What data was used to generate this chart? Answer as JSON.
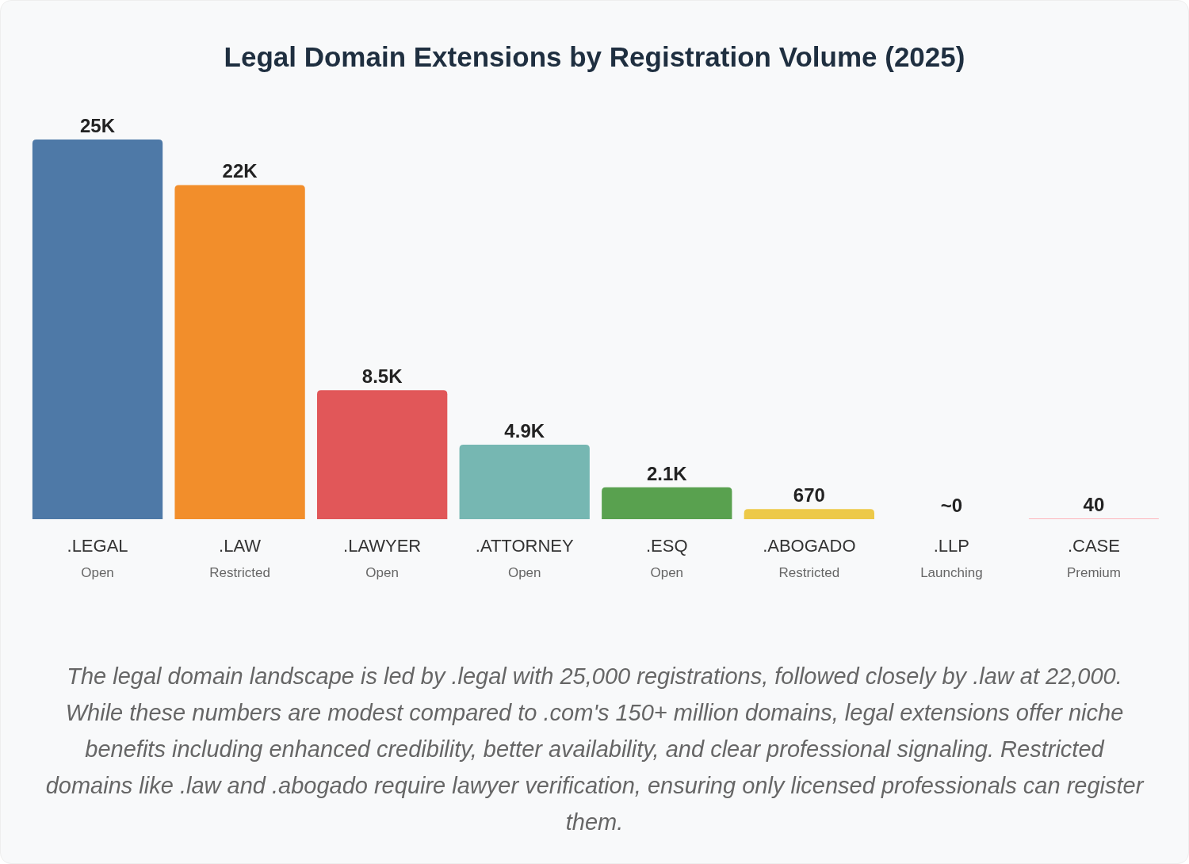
{
  "chart_data": {
    "type": "bar",
    "title": "Legal Domain Extensions by Registration Volume (2025)",
    "categories": [
      ".LEGAL\nOpen",
      ".LAW\nRestricted",
      ".LAWYER\nOpen",
      ".ATTORNEY\nOpen",
      ".ESQ\nOpen",
      ".ABOGADO\nRestricted",
      ".LLP\nLaunching",
      ".CASE\nPremium"
    ],
    "values": [
      25000,
      22000,
      8500,
      4900,
      2100,
      670,
      0,
      40
    ],
    "value_labels": [
      "25K",
      "22K",
      "8.5K",
      "4.9K",
      "2.1K",
      "670",
      "~0",
      "40"
    ],
    "colors": [
      "#4e79a7",
      "#f28e2b",
      "#e15759",
      "#76b7b2",
      "#59a14f",
      "#edc948",
      "#b07aa1",
      "#ff9da7"
    ],
    "annotations": [
      "The legal domain landscape is led by .legal with 25,000 registrations, followed closely by .law at 22,000. While these numbers are modest compared to .com's 150+ million domains, legal extensions offer niche benefits including enhanced credibility, better availability, and clear professional signaling. Restricted domains like .law and .abogado require lawyer verification, ensuring only licensed professionals can register them."
    ]
  }
}
